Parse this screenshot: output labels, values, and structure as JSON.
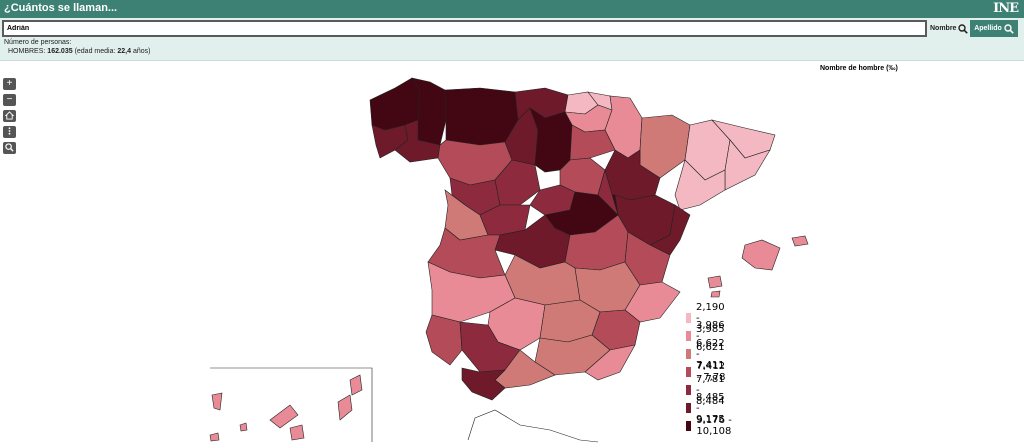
{
  "header": {
    "title": "¿Cuántos se llaman...",
    "logo": "INE"
  },
  "search": {
    "value": "Adrián",
    "nombre_label": "Nombre",
    "apellido_label": "Apellido"
  },
  "info": {
    "line1": "Número de personas:",
    "gender": "HOMBRES:",
    "count": "162.035",
    "detail_prefix": "(edad media:",
    "age": "22,4",
    "detail_suffix": "años)"
  },
  "map": {
    "title": "Nombre de hombre (‰)"
  },
  "controls": {
    "zoom_in": "+",
    "zoom_out": "−"
  },
  "legend": [
    {
      "label": "2,190 - 3,985",
      "color": "#f4b8c3"
    },
    {
      "label": "3,986 - 6,621",
      "color": "#e88b97"
    },
    {
      "label": "6,622 - 7,411",
      "color": "#cf7a77"
    },
    {
      "label": "7,412 - 7,78",
      "color": "#b34b58"
    },
    {
      "label": "7,781 - 8,484",
      "color": "#8e2a3d"
    },
    {
      "label": "8,485 - 9,175",
      "color": "#6f1a2b"
    },
    {
      "label": "9,176 - 10,108",
      "color": "#420713"
    }
  ]
}
